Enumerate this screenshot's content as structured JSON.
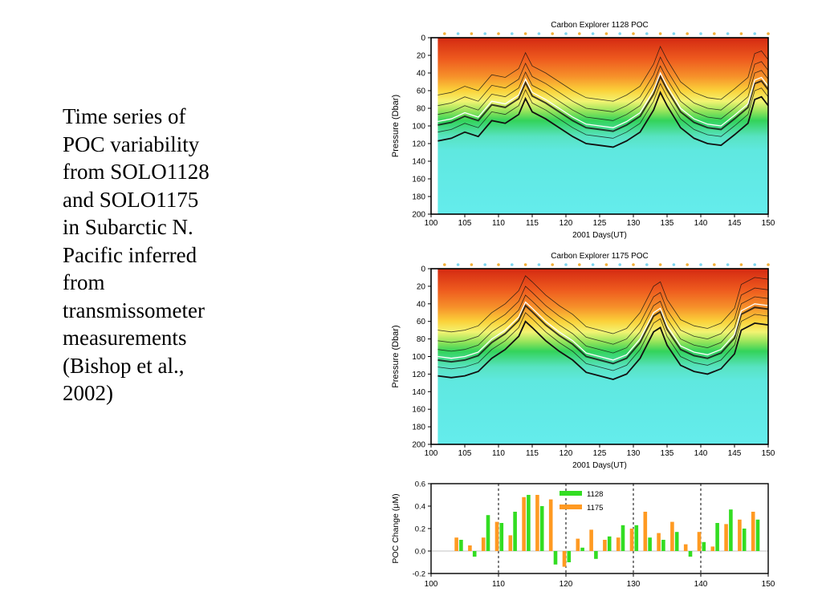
{
  "caption": {
    "lines": [
      "Time series of",
      "POC variability",
      "from SOLO1128",
      "and SOLO1175",
      "in Subarctic N.",
      "Pacific inferred",
      "from",
      "transmissometer",
      "measurements",
      "(Bishop et al.,",
      "2002)"
    ]
  },
  "chart_data": [
    {
      "type": "heatmap",
      "title": "Carbon Explorer 1128 POC",
      "xlabel": "2001 Days(UT)",
      "ylabel": "Pressure (Dbar)",
      "xlim": [
        100,
        150
      ],
      "ylim": [
        200,
        0
      ],
      "xticks": [
        100,
        105,
        110,
        115,
        120,
        125,
        130,
        135,
        140,
        145,
        150
      ],
      "yticks": [
        0,
        20,
        40,
        60,
        80,
        100,
        120,
        140,
        160,
        180,
        200
      ],
      "mixed_layer_depth_dbar": [
        [
          101,
          95
        ],
        [
          103,
          92
        ],
        [
          105,
          85
        ],
        [
          107,
          90
        ],
        [
          109,
          72
        ],
        [
          111,
          75
        ],
        [
          113,
          65
        ],
        [
          114,
          47
        ],
        [
          115,
          62
        ],
        [
          117,
          70
        ],
        [
          119,
          80
        ],
        [
          121,
          90
        ],
        [
          123,
          98
        ],
        [
          125,
          100
        ],
        [
          127,
          102
        ],
        [
          129,
          95
        ],
        [
          131,
          85
        ],
        [
          133,
          60
        ],
        [
          134,
          40
        ],
        [
          135,
          55
        ],
        [
          137,
          80
        ],
        [
          139,
          92
        ],
        [
          141,
          98
        ],
        [
          143,
          100
        ],
        [
          145,
          88
        ],
        [
          147,
          75
        ],
        [
          148,
          48
        ],
        [
          149,
          45
        ],
        [
          150,
          55
        ]
      ]
    },
    {
      "type": "heatmap",
      "title": "Carbon Explorer 1175 POC",
      "xlabel": "2001 Days(UT)",
      "ylabel": "Pressure (Dbar)",
      "xlim": [
        100,
        150
      ],
      "ylim": [
        200,
        0
      ],
      "xticks": [
        100,
        105,
        110,
        115,
        120,
        125,
        130,
        135,
        140,
        145,
        150
      ],
      "yticks": [
        0,
        20,
        40,
        60,
        80,
        100,
        120,
        140,
        160,
        180,
        200
      ],
      "mixed_layer_depth_dbar": [
        [
          101,
          100
        ],
        [
          103,
          102
        ],
        [
          105,
          100
        ],
        [
          107,
          95
        ],
        [
          109,
          80
        ],
        [
          111,
          70
        ],
        [
          113,
          55
        ],
        [
          114,
          38
        ],
        [
          115,
          45
        ],
        [
          117,
          60
        ],
        [
          119,
          72
        ],
        [
          121,
          82
        ],
        [
          123,
          96
        ],
        [
          125,
          100
        ],
        [
          127,
          104
        ],
        [
          129,
          98
        ],
        [
          131,
          80
        ],
        [
          133,
          50
        ],
        [
          134,
          45
        ],
        [
          135,
          65
        ],
        [
          137,
          88
        ],
        [
          139,
          95
        ],
        [
          141,
          98
        ],
        [
          143,
          92
        ],
        [
          145,
          75
        ],
        [
          146,
          48
        ],
        [
          148,
          40
        ],
        [
          150,
          42
        ]
      ]
    },
    {
      "type": "bar",
      "xlabel": "",
      "ylabel": "POC Change (μM)",
      "xlim": [
        100,
        150
      ],
      "ylim": [
        -0.2,
        0.6
      ],
      "xticks": [
        100,
        110,
        120,
        130,
        140,
        150
      ],
      "yticks": [
        -0.2,
        0.0,
        0.2,
        0.4,
        0.6
      ],
      "yticklabels": [
        "-0.2",
        "0.0",
        "0.2",
        "0.4",
        "0.6"
      ],
      "reference_lines_x": [
        110,
        120,
        130,
        140
      ],
      "x": [
        104,
        106,
        108,
        110,
        112,
        114,
        116,
        118,
        120,
        122,
        124,
        126,
        128,
        130,
        132,
        134,
        136,
        138,
        140,
        142,
        144,
        146,
        148
      ],
      "series": [
        {
          "name": "1128",
          "color": "#33dd22",
          "values": [
            0.1,
            -0.05,
            0.32,
            0.25,
            0.35,
            0.5,
            0.4,
            -0.12,
            -0.1,
            0.03,
            -0.07,
            0.13,
            0.23,
            0.23,
            0.12,
            0.1,
            0.17,
            -0.05,
            0.08,
            0.25,
            0.37,
            0.2,
            0.28
          ]
        },
        {
          "name": "1175",
          "color": "#ff9a22",
          "values": [
            0.12,
            0.05,
            0.12,
            0.26,
            0.14,
            0.48,
            0.5,
            0.46,
            -0.14,
            0.11,
            0.19,
            0.1,
            0.12,
            0.2,
            0.35,
            0.16,
            0.26,
            0.06,
            0.17,
            0.04,
            0.24,
            0.28,
            0.35
          ]
        }
      ],
      "legend_position": "top-center"
    }
  ]
}
